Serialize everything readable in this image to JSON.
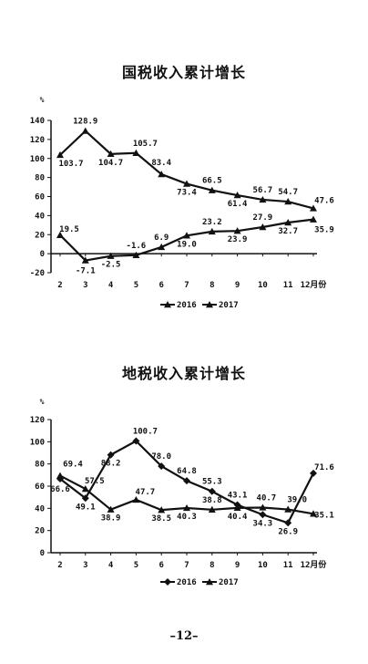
{
  "page_number": "–12–",
  "chart_data": [
    {
      "type": "line",
      "title": "国税收入累计增长",
      "ylabel": "%",
      "xlabel": "",
      "categories": [
        "2",
        "3",
        "4",
        "5",
        "6",
        "7",
        "8",
        "9",
        "10",
        "11",
        "12月份"
      ],
      "ylim": [
        -20,
        140
      ],
      "yticks": [
        -20,
        0,
        20,
        40,
        60,
        80,
        100,
        120,
        140
      ],
      "grid": false,
      "legend": "bottom",
      "series": [
        {
          "name": "2016",
          "marker": "triangle",
          "values": [
            103.7,
            128.9,
            104.7,
            105.7,
            83.4,
            73.4,
            66.5,
            61.4,
            56.7,
            54.7,
            47.6
          ],
          "labels": [
            "103.7",
            "128.9",
            "104.7",
            "105.7",
            "83.4",
            "73.4",
            "66.5",
            "61.4",
            "56.7",
            "54.7",
            "47.6"
          ]
        },
        {
          "name": "2017",
          "marker": "triangle",
          "values": [
            19.5,
            -7.1,
            -2.5,
            -1.6,
            6.9,
            19.0,
            23.2,
            23.9,
            27.9,
            32.7,
            35.9
          ],
          "labels": [
            "19.5",
            "-7.1",
            "-2.5",
            "-1.6",
            "6.9",
            "19.0",
            "23.2",
            "23.9",
            "27.9",
            "32.7",
            "35.9"
          ]
        }
      ]
    },
    {
      "type": "line",
      "title": "地税收入累计增长",
      "ylabel": "%",
      "xlabel": "",
      "categories": [
        "2",
        "3",
        "4",
        "5",
        "6",
        "7",
        "8",
        "9",
        "10",
        "11",
        "12月份"
      ],
      "ylim": [
        0,
        120
      ],
      "yticks": [
        0,
        20,
        40,
        60,
        80,
        100,
        120
      ],
      "grid": false,
      "legend": "bottom",
      "series": [
        {
          "name": "2016",
          "marker": "diamond",
          "values": [
            66.6,
            49.1,
            88.2,
            100.7,
            78.0,
            64.8,
            55.3,
            43.1,
            34.3,
            26.9,
            71.6
          ],
          "labels": [
            "66.6",
            "49.1",
            "88.2",
            "100.7",
            "78.0",
            "64.8",
            "55.3",
            "43.1",
            "34.3",
            "26.9",
            "71.6"
          ]
        },
        {
          "name": "2017",
          "marker": "triangle",
          "values": [
            69.4,
            57.5,
            38.9,
            47.7,
            38.5,
            40.3,
            38.8,
            40.4,
            40.7,
            39.0,
            35.1
          ],
          "labels": [
            "69.4",
            "57.5",
            "38.9",
            "47.7",
            "38.5",
            "40.3",
            "38.8",
            "40.4",
            "40.7",
            "39.0",
            "35.1"
          ]
        }
      ]
    }
  ]
}
